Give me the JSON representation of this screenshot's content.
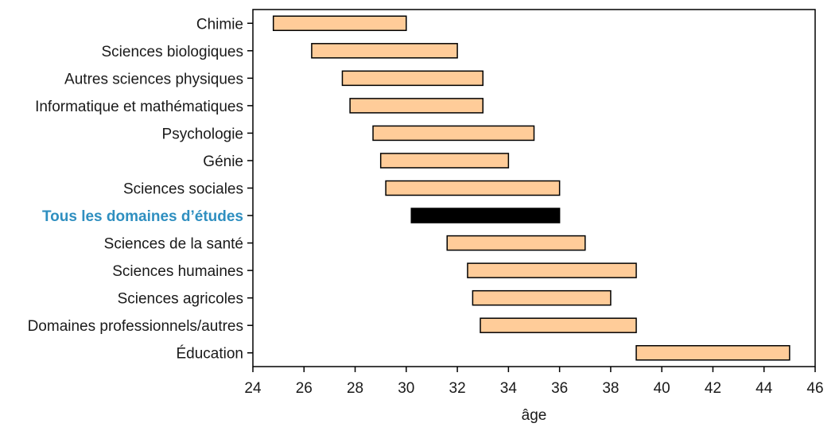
{
  "chart_data": {
    "type": "bar",
    "orientation": "horizontal",
    "subtype": "range",
    "title": "",
    "xlabel": "âge",
    "ylabel": "",
    "xlim": [
      24,
      46
    ],
    "xticks": [
      24,
      26,
      28,
      30,
      32,
      34,
      36,
      38,
      40,
      42,
      44,
      46
    ],
    "grid": false,
    "colors": {
      "bar": "#ffcc99",
      "highlight_bar": "#000000",
      "highlight_label": "#2f8fc0",
      "border": "#000000"
    },
    "categories": [
      "Chimie",
      "Sciences biologiques",
      "Autres sciences physiques",
      "Informatique et mathématiques",
      "Psychologie",
      "Génie",
      "Sciences sociales",
      "Tous les domaines d’études",
      "Sciences de la santé",
      "Sciences humaines",
      "Sciences agricoles",
      "Domaines professionnels/autres",
      "Éducation"
    ],
    "ranges": [
      [
        24.8,
        30.0
      ],
      [
        26.3,
        32.0
      ],
      [
        27.5,
        33.0
      ],
      [
        27.8,
        33.0
      ],
      [
        28.7,
        35.0
      ],
      [
        29.0,
        34.0
      ],
      [
        29.2,
        36.0
      ],
      [
        30.2,
        36.0
      ],
      [
        31.6,
        37.0
      ],
      [
        32.4,
        39.0
      ],
      [
        32.6,
        38.0
      ],
      [
        32.9,
        39.0
      ],
      [
        39.0,
        45.0
      ]
    ],
    "highlight_index": 7
  }
}
